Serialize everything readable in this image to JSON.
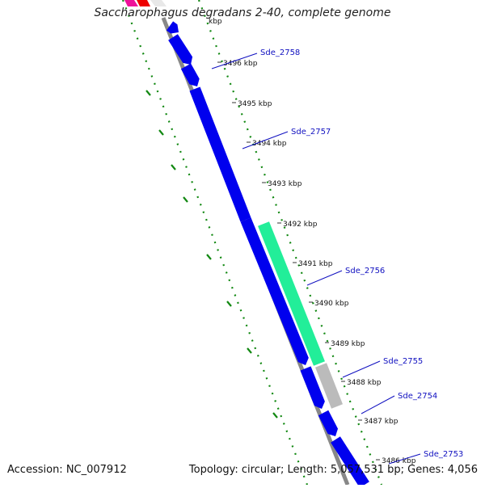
{
  "title": "Saccharophagus degradans 2-40, complete genome",
  "footer": {
    "accession": "Accession: NC_007912",
    "summary": "Topology: circular; Length: 5,057,531 bp; Genes: 4,056"
  },
  "scale_marks": [
    "3496 kbp",
    "3495 kbp",
    "3494 kbp",
    "3493 kbp",
    "3492 kbp",
    "3491 kbp",
    "3490 kbp",
    "3489 kbp",
    "3488 kbp",
    "3487 kbp",
    "3486 kbp"
  ],
  "gene_labels": [
    "Sde_2758",
    "Sde_2757",
    "Sde_2756",
    "Sde_2755",
    "Sde_2754",
    "Sde_2753"
  ],
  "colors": {
    "cds": "#0000ee",
    "highlight": "#22ee99",
    "gray": "#bbbbbb",
    "backbone": "#888888",
    "ticks": "#118811",
    "pink": "#ee1199",
    "red": "#ee0000",
    "label": "#1010c0"
  }
}
